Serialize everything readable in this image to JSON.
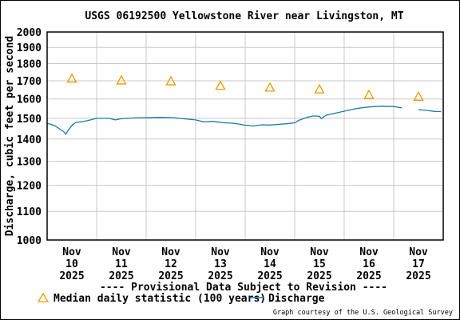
{
  "chart_data": {
    "type": "line",
    "title": "USGS 06192500 Yellowstone River near Livingston, MT",
    "ylabel": "Discharge, cubic feet per second",
    "xlabel": "",
    "yscale": "log",
    "ylim": [
      1000,
      2000
    ],
    "yticks": [
      "2000",
      "1900",
      "1800",
      "1700",
      "1600",
      "1500",
      "1400",
      "1300",
      "1200",
      "1100",
      "1000"
    ],
    "xlim": [
      "2025-11-10T00:00",
      "2025-11-18T00:00"
    ],
    "xticks": [
      {
        "month": "Nov",
        "day": "10",
        "year": "2025"
      },
      {
        "month": "Nov",
        "day": "11",
        "year": "2025"
      },
      {
        "month": "Nov",
        "day": "12",
        "year": "2025"
      },
      {
        "month": "Nov",
        "day": "13",
        "year": "2025"
      },
      {
        "month": "Nov",
        "day": "14",
        "year": "2025"
      },
      {
        "month": "Nov",
        "day": "15",
        "year": "2025"
      },
      {
        "month": "Nov",
        "day": "16",
        "year": "2025"
      },
      {
        "month": "Nov",
        "day": "17",
        "year": "2025"
      }
    ],
    "grid": true,
    "series": [
      {
        "name": "Median daily statistic (100 years)",
        "kind": "marker",
        "marker": "triangle",
        "color": "#e69b00",
        "points": [
          {
            "x": "2025-11-10T12:00",
            "y": 1710
          },
          {
            "x": "2025-11-11T12:00",
            "y": 1700
          },
          {
            "x": "2025-11-12T12:00",
            "y": 1695
          },
          {
            "x": "2025-11-13T12:00",
            "y": 1670
          },
          {
            "x": "2025-11-14T12:00",
            "y": 1660
          },
          {
            "x": "2025-11-15T12:00",
            "y": 1650
          },
          {
            "x": "2025-11-16T12:00",
            "y": 1620
          },
          {
            "x": "2025-11-17T12:00",
            "y": 1610
          }
        ]
      },
      {
        "name": "Discharge",
        "kind": "line",
        "color": "#1a7aa8",
        "segments": [
          [
            {
              "x": "2025-11-10T00:00",
              "y": 1475
            },
            {
              "x": "2025-11-10T02:00",
              "y": 1470
            },
            {
              "x": "2025-11-10T04:00",
              "y": 1462
            },
            {
              "x": "2025-11-10T06:00",
              "y": 1448
            },
            {
              "x": "2025-11-10T08:00",
              "y": 1435
            },
            {
              "x": "2025-11-10T09:00",
              "y": 1422
            },
            {
              "x": "2025-11-10T10:00",
              "y": 1438
            },
            {
              "x": "2025-11-10T12:00",
              "y": 1465
            },
            {
              "x": "2025-11-10T14:00",
              "y": 1480
            },
            {
              "x": "2025-11-10T17:00",
              "y": 1483
            },
            {
              "x": "2025-11-10T21:00",
              "y": 1492
            },
            {
              "x": "2025-11-11T00:00",
              "y": 1500
            },
            {
              "x": "2025-11-11T06:00",
              "y": 1500
            },
            {
              "x": "2025-11-11T09:00",
              "y": 1492
            },
            {
              "x": "2025-11-11T12:00",
              "y": 1498
            },
            {
              "x": "2025-11-11T18:00",
              "y": 1502
            },
            {
              "x": "2025-11-12T00:00",
              "y": 1503
            },
            {
              "x": "2025-11-12T06:00",
              "y": 1505
            },
            {
              "x": "2025-11-12T12:00",
              "y": 1504
            },
            {
              "x": "2025-11-12T18:00",
              "y": 1498
            },
            {
              "x": "2025-11-13T00:00",
              "y": 1492
            },
            {
              "x": "2025-11-13T04:00",
              "y": 1482
            },
            {
              "x": "2025-11-13T08:00",
              "y": 1485
            },
            {
              "x": "2025-11-13T14:00",
              "y": 1478
            },
            {
              "x": "2025-11-13T18:00",
              "y": 1476
            },
            {
              "x": "2025-11-13T22:00",
              "y": 1470
            },
            {
              "x": "2025-11-14T00:00",
              "y": 1466
            },
            {
              "x": "2025-11-14T04:00",
              "y": 1462
            },
            {
              "x": "2025-11-14T08:00",
              "y": 1468
            },
            {
              "x": "2025-11-14T12:00",
              "y": 1467
            },
            {
              "x": "2025-11-14T16:00",
              "y": 1470
            },
            {
              "x": "2025-11-14T20:00",
              "y": 1473
            },
            {
              "x": "2025-11-15T00:00",
              "y": 1478
            },
            {
              "x": "2025-11-15T02:00",
              "y": 1490
            },
            {
              "x": "2025-11-15T06:00",
              "y": 1505
            },
            {
              "x": "2025-11-15T09:00",
              "y": 1512
            },
            {
              "x": "2025-11-15T12:00",
              "y": 1510
            },
            {
              "x": "2025-11-15T13:00",
              "y": 1498
            },
            {
              "x": "2025-11-15T15:00",
              "y": 1515
            },
            {
              "x": "2025-11-15T18:00",
              "y": 1522
            },
            {
              "x": "2025-11-16T00:00",
              "y": 1536
            },
            {
              "x": "2025-11-16T06:00",
              "y": 1550
            },
            {
              "x": "2025-11-16T12:00",
              "y": 1558
            },
            {
              "x": "2025-11-16T18:00",
              "y": 1562
            },
            {
              "x": "2025-11-17T00:00",
              "y": 1560
            },
            {
              "x": "2025-11-17T04:00",
              "y": 1553
            }
          ],
          [
            {
              "x": "2025-11-17T12:00",
              "y": 1544
            },
            {
              "x": "2025-11-17T16:00",
              "y": 1540
            },
            {
              "x": "2025-11-17T20:00",
              "y": 1535
            },
            {
              "x": "2025-11-17T23:00",
              "y": 1534
            }
          ]
        ]
      }
    ]
  },
  "banner": "---- Provisional Data Subject to Revision ----",
  "legend": [
    {
      "label": "Median daily statistic (100 years)",
      "symbol": "triangle"
    },
    {
      "label": "Discharge",
      "symbol": "line"
    }
  ],
  "credit": "Graph courtesy of the U.S. Geological Survey",
  "colors": {
    "grid": "#c8c8c8",
    "banner": "#cc0000",
    "triangle": "#e69b00",
    "discharge": "#1a7aa8"
  }
}
